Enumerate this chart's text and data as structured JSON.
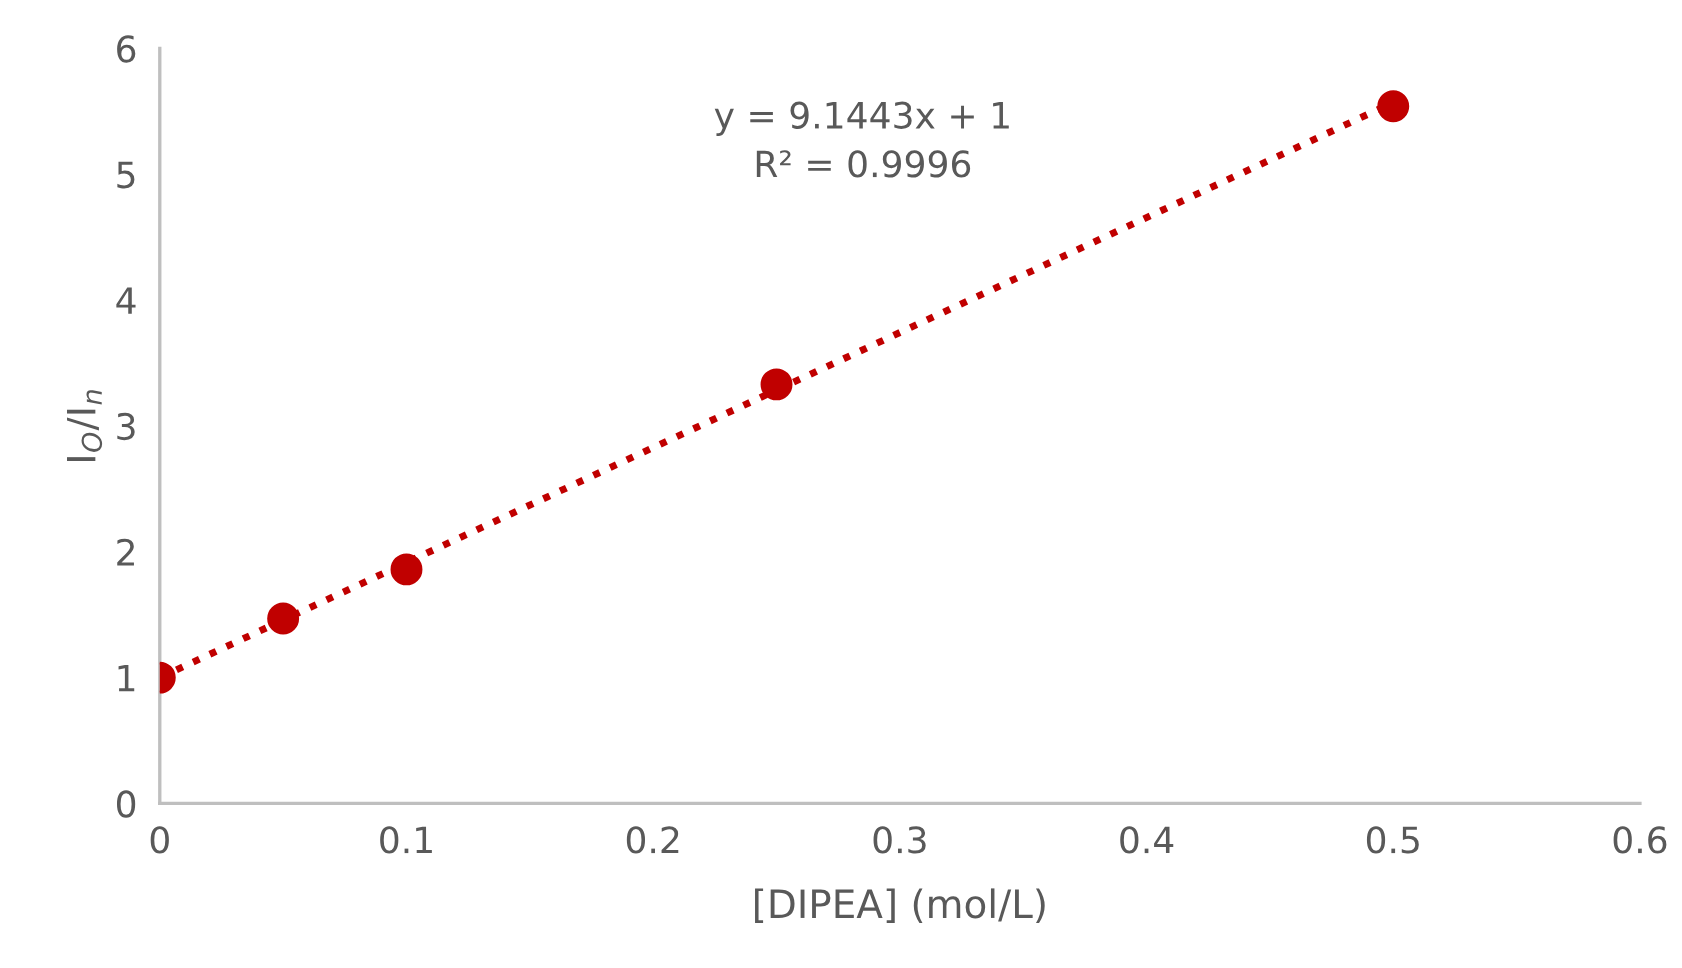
{
  "chart_data": {
    "type": "scatter",
    "xlabel": "[DIPEA] (mol/L)",
    "ylabel": "I$_{O}$/I$_{n}$",
    "series": [
      {
        "color": "#c00000",
        "x": [
          0,
          0.05,
          0.1,
          0.25,
          0.5
        ],
        "values": [
          1.0,
          1.47,
          1.86,
          3.33,
          5.54
        ],
        "marker": "circle"
      },
      {
        "type": "line",
        "color": "#c00000",
        "x": [
          0,
          0.5
        ],
        "values": [
          1.0,
          5.57
        ],
        "line_style": "dotted",
        "marker": "none"
      }
    ],
    "annotations": [
      "y = 9.1443x + 1\nR² = 0.9996"
    ],
    "xlim": [
      0,
      0.6
    ],
    "xticks": [
      0,
      0.1,
      0.2,
      0.3,
      0.4,
      0.5,
      0.6
    ],
    "ylim": [
      0,
      6
    ],
    "yticks": [
      0,
      1,
      2,
      3,
      4,
      5,
      6
    ],
    "grid": false,
    "legend": false
  }
}
